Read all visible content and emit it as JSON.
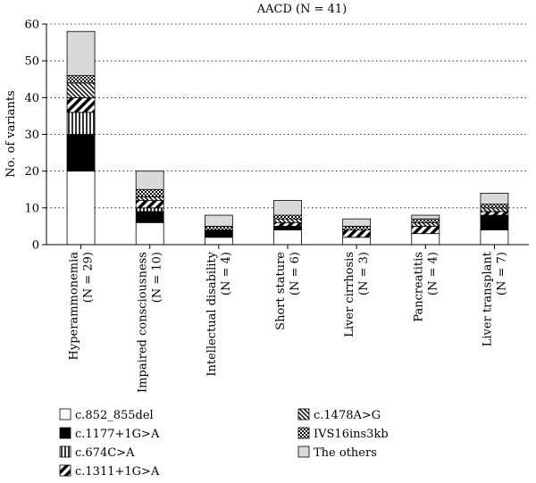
{
  "chart_data": {
    "type": "bar",
    "stacked": true,
    "title": "AACD (N = 41)",
    "ylabel": "No. of variants",
    "xlabel": "",
    "ylim": [
      0,
      60
    ],
    "yticks": [
      0,
      10,
      20,
      30,
      40,
      50,
      60
    ],
    "grid": "horizontal dotted",
    "legend_position": "bottom",
    "categories": [
      {
        "name": "Hyperammonemia",
        "n": "(N = 29)"
      },
      {
        "name": "Impaired consciousness",
        "n": "(N = 10)"
      },
      {
        "name": "Intellectual disability",
        "n": "(N = 4)"
      },
      {
        "name": "Short stature",
        "n": "(N = 6)"
      },
      {
        "name": "Liver cirrhosis",
        "n": "(N = 3)"
      },
      {
        "name": "Pancreatitis",
        "n": "(N = 4)"
      },
      {
        "name": "Liver transplant",
        "n": "(N = 7)"
      }
    ],
    "series": [
      {
        "name": "c.852_855del",
        "pattern": "white",
        "values": [
          20,
          6,
          2,
          4,
          2,
          3,
          4
        ]
      },
      {
        "name": "c.1177+1G>A",
        "pattern": "black",
        "values": [
          10,
          3,
          2,
          1,
          0,
          0,
          4
        ]
      },
      {
        "name": "c.674C>A",
        "pattern": "vertical",
        "values": [
          6,
          1,
          0,
          0,
          0,
          0,
          0
        ]
      },
      {
        "name": "c.1311+1G>A",
        "pattern": "diagonal-thick",
        "values": [
          4,
          2,
          0,
          1,
          2,
          2,
          1
        ]
      },
      {
        "name": "c.1478A>G",
        "pattern": "diagonal-thin",
        "values": [
          4,
          1,
          0,
          1,
          0,
          1,
          1
        ]
      },
      {
        "name": "IVS16ins3kb",
        "pattern": "checker",
        "values": [
          2,
          2,
          1,
          1,
          1,
          1,
          1
        ]
      },
      {
        "name": "The others",
        "pattern": "gray",
        "values": [
          12,
          5,
          3,
          4,
          2,
          1,
          3
        ]
      }
    ]
  }
}
